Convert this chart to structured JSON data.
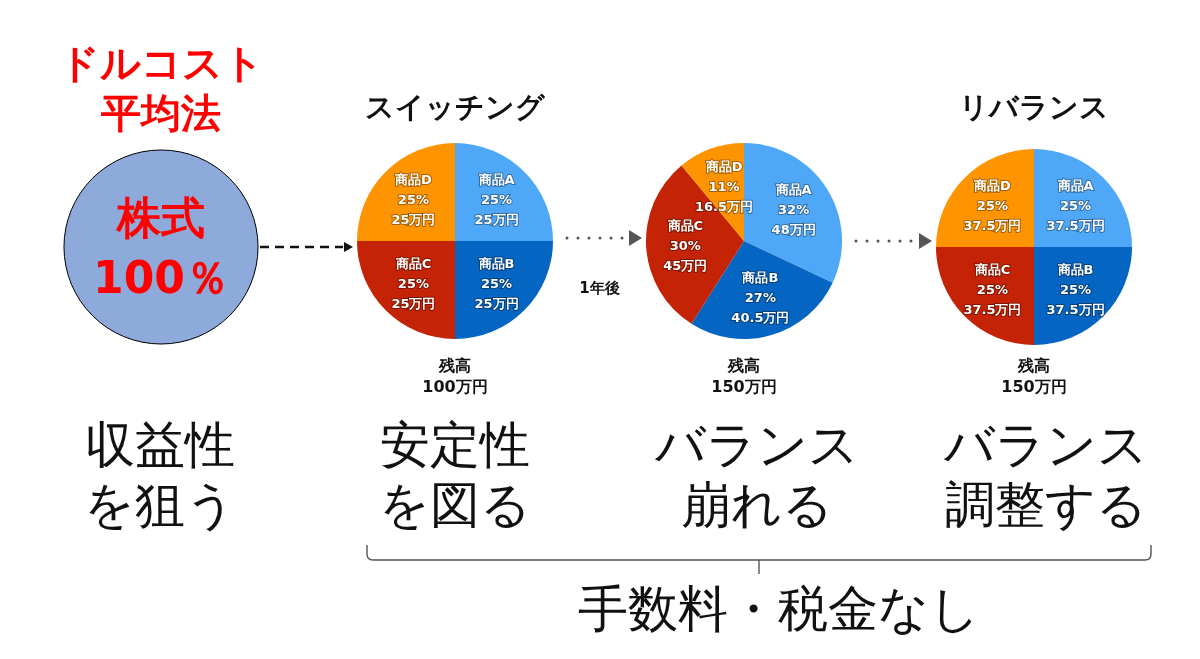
{
  "chart_data": [
    {
      "type": "pie",
      "title": "ドルコスト平均法",
      "categories": [
        "株式"
      ],
      "values": [
        100
      ],
      "value_labels": [
        "100％"
      ],
      "colors": [
        "#8eaadb"
      ],
      "annotations": [
        "収益性を狙う"
      ]
    },
    {
      "type": "pie",
      "title": "スイッチング",
      "categories": [
        "商品A",
        "商品B",
        "商品C",
        "商品D"
      ],
      "values": [
        25,
        25,
        25,
        25
      ],
      "value_labels": [
        "25%\n25万円",
        "25%\n25万円",
        "25%\n25万円",
        "25%\n25万円"
      ],
      "colors": [
        "#4fa8f7",
        "#0565c2",
        "#c42305",
        "#fe9400"
      ],
      "annotations": [
        "残高\n100万円",
        "安定性を図る"
      ]
    },
    {
      "type": "pie",
      "categories": [
        "商品A",
        "商品B",
        "商品C",
        "商品D"
      ],
      "values": [
        32,
        27,
        30,
        11
      ],
      "value_labels": [
        "32%\n48万円",
        "27%\n40.5万円",
        "30%\n45万円",
        "11%\n16.5万円"
      ],
      "colors": [
        "#4fa8f7",
        "#0565c2",
        "#c42305",
        "#fe9400"
      ],
      "annotations": [
        "1年後",
        "残高\n150万円",
        "バランス崩れる"
      ]
    },
    {
      "type": "pie",
      "title": "リバランス",
      "categories": [
        "商品A",
        "商品B",
        "商品C",
        "商品D"
      ],
      "values": [
        25,
        25,
        25,
        25
      ],
      "value_labels": [
        "25%\n37.5万円",
        "25%\n37.5万円",
        "25%\n37.5万円",
        "25%\n37.5万円"
      ],
      "colors": [
        "#4fa8f7",
        "#0565c2",
        "#c42305",
        "#fe9400"
      ],
      "annotations": [
        "残高\n150万円",
        "バランス調整する"
      ]
    },
    {
      "type": "other",
      "annotations": [
        "手数料・税金なし"
      ]
    }
  ]
}
